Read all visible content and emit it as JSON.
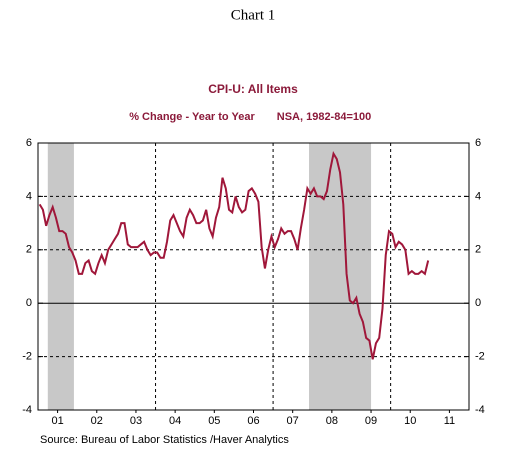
{
  "chart_data": {
    "type": "line",
    "header": "Chart 1",
    "title": "CPI-U: All Items",
    "subtitle": "% Change - Year to Year",
    "note": "NSA, 1982-84=100",
    "source": "Source:  Bureau of Labor Statistics /Haver Analytics",
    "xlim": [
      2001,
      2012
    ],
    "ylim": [
      -4,
      6
    ],
    "yticks": [
      -4,
      -2,
      0,
      2,
      4,
      6
    ],
    "xticks": [
      {
        "value": 2001.5,
        "label": "01"
      },
      {
        "value": 2002.5,
        "label": "02"
      },
      {
        "value": 2003.5,
        "label": "03"
      },
      {
        "value": 2004.5,
        "label": "04"
      },
      {
        "value": 2005.5,
        "label": "05"
      },
      {
        "value": 2006.5,
        "label": "06"
      },
      {
        "value": 2007.5,
        "label": "07"
      },
      {
        "value": 2008.5,
        "label": "08"
      },
      {
        "value": 2009.5,
        "label": "09"
      },
      {
        "value": 2010.5,
        "label": "10"
      },
      {
        "value": 2011.5,
        "label": "11"
      }
    ],
    "xgrid": [
      2004,
      2007,
      2010
    ],
    "shaded": [
      [
        2001.25,
        2001.917
      ],
      [
        2007.917,
        2009.5
      ]
    ],
    "grid": true,
    "x": [
      2001.042,
      2001.125,
      2001.208,
      2001.292,
      2001.375,
      2001.458,
      2001.542,
      2001.625,
      2001.708,
      2001.792,
      2001.875,
      2001.958,
      2002.042,
      2002.125,
      2002.208,
      2002.292,
      2002.375,
      2002.458,
      2002.542,
      2002.625,
      2002.708,
      2002.792,
      2002.875,
      2002.958,
      2003.042,
      2003.125,
      2003.208,
      2003.292,
      2003.375,
      2003.458,
      2003.542,
      2003.625,
      2003.708,
      2003.792,
      2003.875,
      2003.958,
      2004.042,
      2004.125,
      2004.208,
      2004.292,
      2004.375,
      2004.458,
      2004.542,
      2004.625,
      2004.708,
      2004.792,
      2004.875,
      2004.958,
      2005.042,
      2005.125,
      2005.208,
      2005.292,
      2005.375,
      2005.458,
      2005.542,
      2005.625,
      2005.708,
      2005.792,
      2005.875,
      2005.958,
      2006.042,
      2006.125,
      2006.208,
      2006.292,
      2006.375,
      2006.458,
      2006.542,
      2006.625,
      2006.708,
      2006.792,
      2006.875,
      2006.958,
      2007.042,
      2007.125,
      2007.208,
      2007.292,
      2007.375,
      2007.458,
      2007.542,
      2007.625,
      2007.708,
      2007.792,
      2007.875,
      2007.958,
      2008.042,
      2008.125,
      2008.208,
      2008.292,
      2008.375,
      2008.458,
      2008.542,
      2008.625,
      2008.708,
      2008.792,
      2008.875,
      2008.958,
      2009.042,
      2009.125,
      2009.208,
      2009.292,
      2009.375,
      2009.458,
      2009.542,
      2009.625,
      2009.708,
      2009.792,
      2009.875,
      2009.958,
      2010.042,
      2010.125,
      2010.208,
      2010.292,
      2010.375,
      2010.458,
      2010.542,
      2010.625,
      2010.708,
      2010.792,
      2010.875,
      2010.958
    ],
    "series": [
      {
        "color": "#a0173a",
        "values": [
          3.7,
          3.5,
          2.9,
          3.3,
          3.6,
          3.2,
          2.7,
          2.7,
          2.6,
          2.1,
          1.9,
          1.6,
          1.1,
          1.1,
          1.5,
          1.6,
          1.2,
          1.1,
          1.5,
          1.8,
          1.5,
          2.0,
          2.2,
          2.4,
          2.6,
          3.0,
          3.0,
          2.2,
          2.1,
          2.1,
          2.1,
          2.2,
          2.3,
          2.0,
          1.8,
          1.9,
          1.9,
          1.7,
          1.7,
          2.3,
          3.1,
          3.3,
          3.0,
          2.7,
          2.5,
          3.2,
          3.5,
          3.3,
          3.0,
          3.0,
          3.1,
          3.5,
          2.8,
          2.5,
          3.2,
          3.6,
          4.7,
          4.3,
          3.5,
          3.4,
          4.0,
          3.6,
          3.4,
          3.5,
          4.2,
          4.3,
          4.1,
          3.8,
          2.1,
          1.3,
          2.0,
          2.5,
          2.1,
          2.4,
          2.8,
          2.6,
          2.7,
          2.7,
          2.4,
          2.0,
          2.8,
          3.5,
          4.3,
          4.1,
          4.3,
          4.0,
          4.0,
          3.9,
          4.2,
          5.0,
          5.6,
          5.4,
          4.9,
          3.7,
          1.1,
          0.1,
          0.0,
          0.2,
          -0.4,
          -0.7,
          -1.3,
          -1.4,
          -2.1,
          -1.5,
          -1.3,
          -0.2,
          1.8,
          2.7,
          2.6,
          2.1,
          2.3,
          2.2,
          2.0,
          1.1,
          1.2,
          1.1,
          1.1,
          1.2,
          1.1,
          1.6
        ]
      }
    ]
  }
}
